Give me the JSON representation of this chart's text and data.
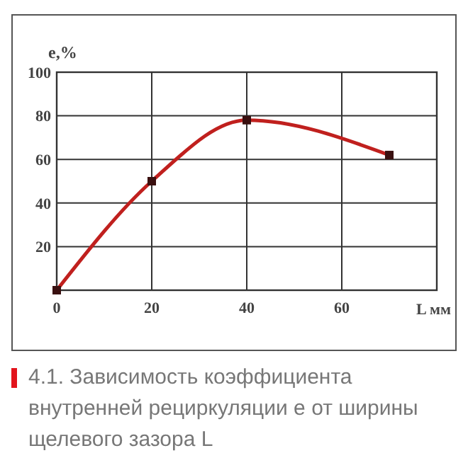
{
  "chart_data": {
    "type": "line",
    "title": "4.1. Зависимость коэффициента внутренней рециркуляции e от ширины щелевого зазора L",
    "xlabel": "L мм",
    "ylabel": "e,%",
    "x": [
      0,
      20,
      40,
      70
    ],
    "series": [
      {
        "color": "#c0201e",
        "values": [
          0,
          50,
          78,
          62
        ]
      }
    ],
    "xlim": [
      0,
      80
    ],
    "xticks": [
      0,
      20,
      40,
      60
    ],
    "ylim": [
      0,
      100
    ],
    "yticks": [
      20,
      40,
      60,
      80,
      100
    ],
    "grid": true,
    "marker": "square",
    "line_style": "solid"
  }
}
